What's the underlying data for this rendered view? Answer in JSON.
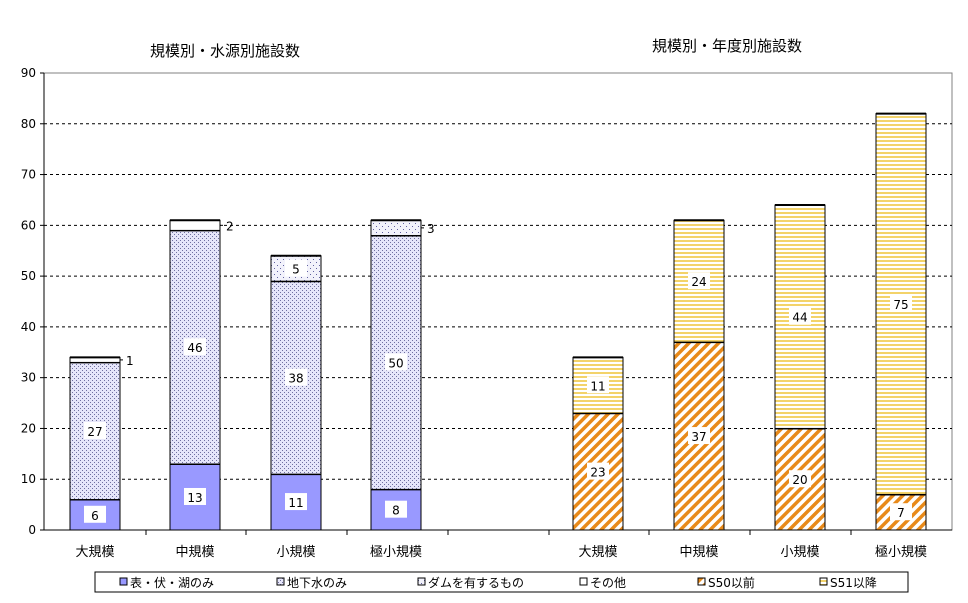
{
  "titles": {
    "left": "規模別・水源別施設数",
    "right": "規模別・年度別施設数"
  },
  "chart_data": {
    "type": "bar",
    "stacked": true,
    "ylim": [
      0,
      90
    ],
    "yticks": [
      0,
      10,
      20,
      30,
      40,
      50,
      60,
      70,
      80,
      90
    ],
    "grid": "dashed horizontal",
    "legend_position": "bottom",
    "groups": [
      {
        "title": "規模別・水源別施設数",
        "categories": [
          "大規模",
          "中規模",
          "小規模",
          "極小規模"
        ],
        "series": [
          {
            "name": "表・伏・湖のみ",
            "values": [
              6,
              13,
              11,
              8
            ],
            "color": "#9999ff"
          },
          {
            "name": "地下水のみ",
            "values": [
              27,
              46,
              38,
              50
            ],
            "color": "#c8c8f0"
          },
          {
            "name": "ダムを有するもの",
            "values": [
              0,
              0,
              5,
              3
            ],
            "color": "#d0d0e8"
          },
          {
            "name": "その他",
            "values": [
              1,
              2,
              0,
              0
            ],
            "color": "#ffffff"
          }
        ],
        "labels": [
          [
            "6",
            "27",
            "",
            "1"
          ],
          [
            "13",
            "46",
            "",
            "2"
          ],
          [
            "11",
            "38",
            "5",
            ""
          ],
          [
            "8",
            "50",
            "3",
            ""
          ]
        ]
      },
      {
        "title": "規模別・年度別施設数",
        "categories": [
          "大規模",
          "中規模",
          "小規模",
          "極小規模"
        ],
        "series": [
          {
            "name": "S50以前",
            "values": [
              23,
              37,
              20,
              7
            ],
            "color": "#f0a030"
          },
          {
            "name": "S51以降",
            "values": [
              11,
              24,
              44,
              75
            ],
            "color": "#f0d060"
          }
        ]
      }
    ]
  },
  "legend": [
    {
      "label": "表・伏・湖のみ",
      "pattern": "solid-blue"
    },
    {
      "label": "地下水のみ",
      "pattern": "dots-blue"
    },
    {
      "label": "ダムを有するもの",
      "pattern": "dots-sparse"
    },
    {
      "label": "その他",
      "pattern": "white"
    },
    {
      "label": "S50以前",
      "pattern": "hatch-orange"
    },
    {
      "label": "S51以降",
      "pattern": "lines-yellow"
    }
  ]
}
